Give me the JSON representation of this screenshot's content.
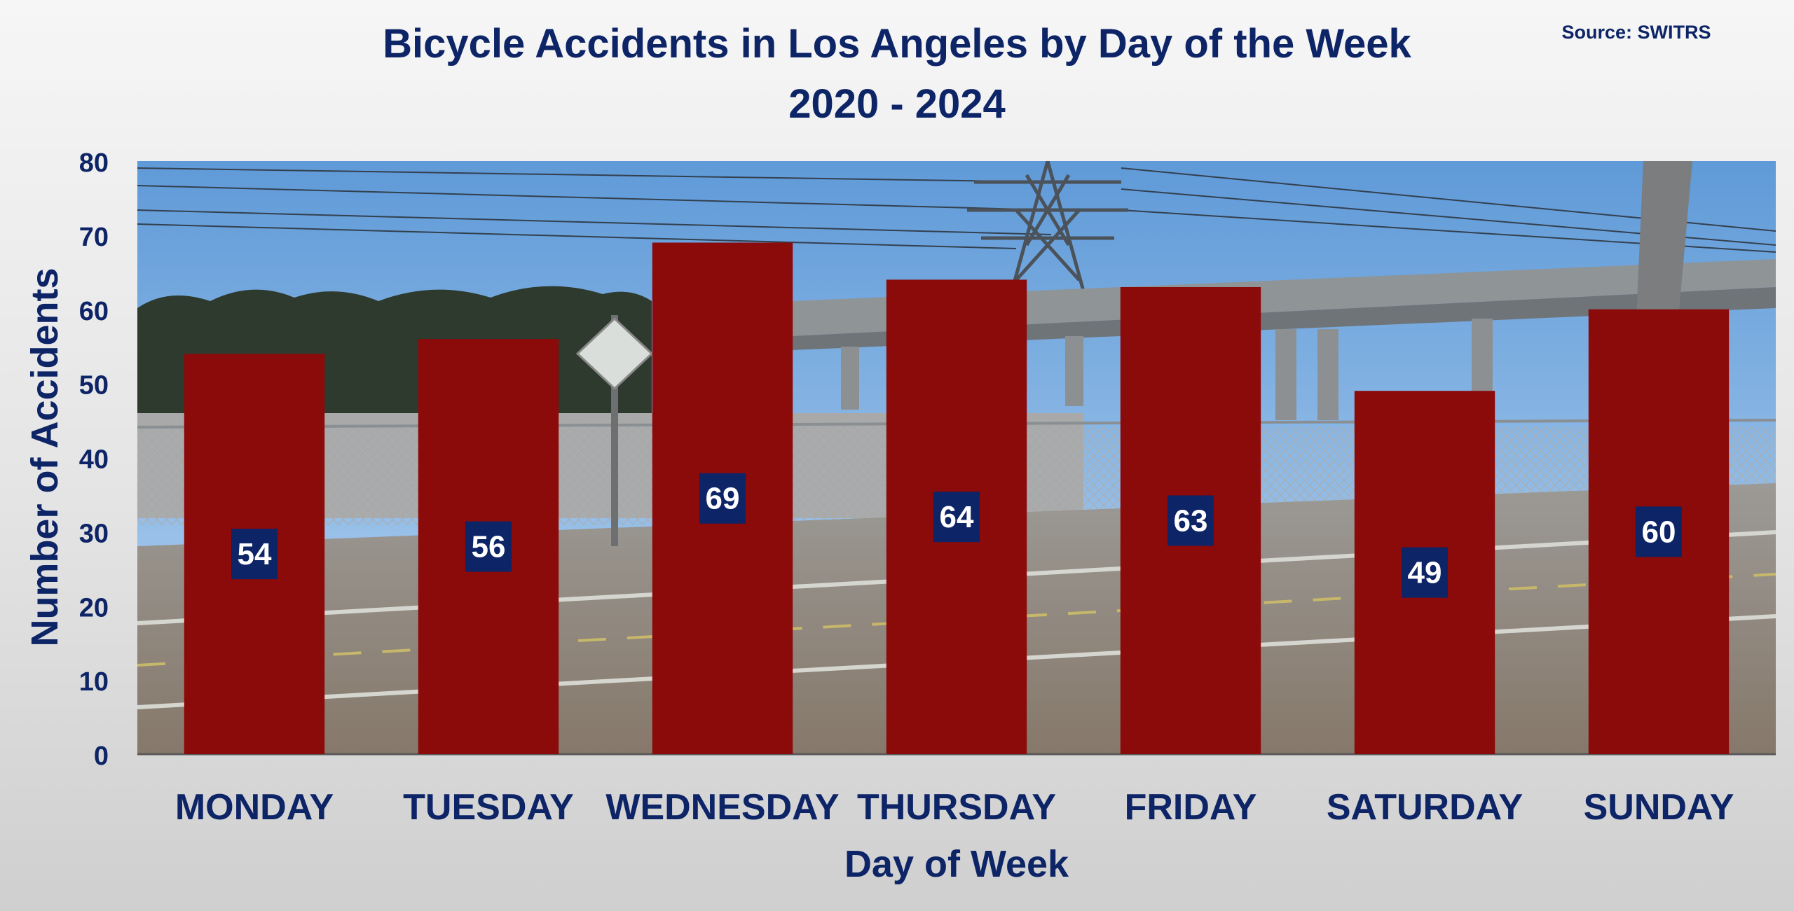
{
  "source_note": "Source: SWITRS",
  "colors": {
    "bar": "#8b0a0a",
    "text": "#0d2466",
    "label_box": "#0d2466",
    "label_text": "#ffffff"
  },
  "chart_data": {
    "type": "bar",
    "title": "Bicycle Accidents in Los Angeles by Day of the Week",
    "subtitle": "2020 - 2024",
    "xlabel": "Day of Week",
    "ylabel": "Number of Accidents",
    "categories": [
      "MONDAY",
      "TUESDAY",
      "WEDNESDAY",
      "THURSDAY",
      "FRIDAY",
      "SATURDAY",
      "SUNDAY"
    ],
    "values": [
      54,
      56,
      69,
      64,
      63,
      49,
      60
    ],
    "data_labels": [
      "54",
      "56",
      "69",
      "64",
      "63",
      "49",
      "60"
    ],
    "ylim": [
      0,
      80
    ],
    "yticks": [
      "0",
      "10",
      "20",
      "30",
      "40",
      "50",
      "60",
      "70",
      "80"
    ],
    "grid": false,
    "background": "photo of a bike path beside a chain-link fence, power transmission tower and freeway overpass"
  }
}
